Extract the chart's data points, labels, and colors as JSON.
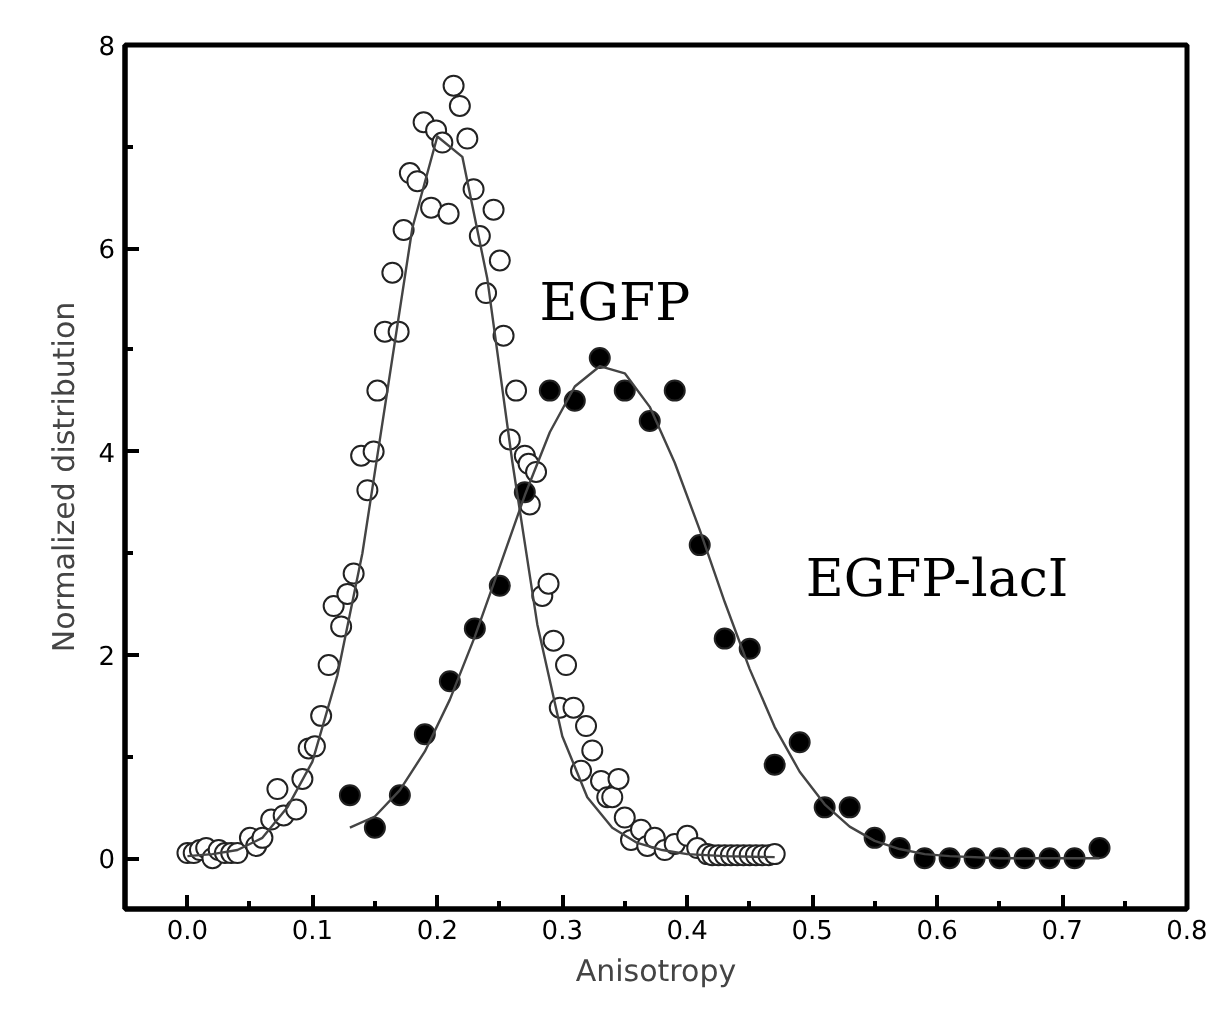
{
  "chart_data": {
    "type": "scatter",
    "xlabel": "Anisotropy",
    "ylabel": "Normalized distribution",
    "xlim": [
      -0.05,
      0.8
    ],
    "ylim": [
      -0.5,
      8
    ],
    "xticks": [
      {
        "value": 0,
        "label": "0.0"
      },
      {
        "value": 0.1,
        "label": "0.1"
      },
      {
        "value": 0.2,
        "label": "0.2"
      },
      {
        "value": 0.3,
        "label": "0.3"
      },
      {
        "value": 0.4,
        "label": "0.4"
      },
      {
        "value": 0.5,
        "label": "0.5"
      },
      {
        "value": 0.6,
        "label": "0.6"
      },
      {
        "value": 0.7,
        "label": "0.7"
      },
      {
        "value": 0.8,
        "label": "0.8"
      }
    ],
    "yticks": [
      0,
      2,
      4,
      6,
      8
    ],
    "grid": false,
    "legend": false,
    "marker": "circle",
    "series": [
      {
        "name": "EGFP",
        "color": "#ffffff",
        "x": [
          0,
          0.005,
          0.01,
          0.015,
          0.02,
          0.025,
          0.03,
          0.035,
          0.04,
          0.05,
          0.055,
          0.06,
          0.067,
          0.072,
          0.077,
          0.087,
          0.092,
          0.097,
          0.102,
          0.107,
          0.113,
          0.117,
          0.123,
          0.128,
          0.133,
          0.139,
          0.144,
          0.149,
          0.152,
          0.158,
          0.164,
          0.169,
          0.173,
          0.178,
          0.184,
          0.189,
          0.195,
          0.199,
          0.204,
          0.209,
          0.213,
          0.218,
          0.224,
          0.229,
          0.234,
          0.239,
          0.245,
          0.25,
          0.253,
          0.258,
          0.263,
          0.27,
          0.273,
          0.274,
          0.279,
          0.284,
          0.289,
          0.293,
          0.298,
          0.303,
          0.309,
          0.315,
          0.319,
          0.324,
          0.331,
          0.336,
          0.34,
          0.345,
          0.35,
          0.355,
          0.363,
          0.368,
          0.374,
          0.382,
          0.39,
          0.4,
          0.408,
          0.416,
          0.42,
          0.425,
          0.43,
          0.435,
          0.44,
          0.445,
          0.45,
          0.455,
          0.46,
          0.465,
          0.47
        ],
        "values": [
          0.05,
          0.05,
          0.08,
          0.1,
          0.0,
          0.08,
          0.05,
          0.05,
          0.05,
          0.2,
          0.12,
          0.2,
          0.38,
          0.68,
          0.42,
          0.48,
          0.78,
          1.08,
          1.1,
          1.4,
          1.9,
          2.48,
          2.28,
          2.6,
          2.8,
          3.96,
          3.62,
          4.0,
          4.6,
          5.18,
          5.76,
          5.18,
          6.18,
          6.74,
          6.66,
          7.24,
          6.4,
          7.16,
          7.04,
          6.34,
          7.6,
          7.4,
          7.08,
          6.58,
          6.12,
          5.56,
          6.38,
          5.88,
          5.14,
          4.12,
          4.6,
          3.96,
          3.88,
          3.48,
          3.8,
          2.58,
          2.7,
          2.14,
          1.48,
          1.9,
          1.48,
          0.86,
          1.3,
          1.06,
          0.76,
          0.6,
          0.6,
          0.78,
          0.4,
          0.18,
          0.28,
          0.12,
          0.2,
          0.08,
          0.14,
          0.22,
          0.1,
          0.04,
          0.03,
          0.03,
          0.03,
          0.03,
          0.03,
          0.03,
          0.03,
          0.03,
          0.03,
          0.03,
          0.04
        ]
      },
      {
        "name": "EGFP-lacI",
        "color": "#000000",
        "x": [
          0.13,
          0.15,
          0.17,
          0.19,
          0.21,
          0.23,
          0.25,
          0.27,
          0.29,
          0.31,
          0.33,
          0.35,
          0.37,
          0.39,
          0.41,
          0.43,
          0.45,
          0.47,
          0.49,
          0.51,
          0.53,
          0.55,
          0.57,
          0.59,
          0.61,
          0.63,
          0.65,
          0.67,
          0.69,
          0.71,
          0.73
        ],
        "values": [
          0.62,
          0.3,
          0.62,
          1.22,
          1.74,
          2.26,
          2.68,
          3.6,
          4.6,
          4.5,
          4.92,
          4.6,
          4.3,
          4.6,
          3.08,
          2.16,
          2.06,
          0.92,
          1.14,
          0.5,
          0.5,
          0.2,
          0.1,
          0,
          0,
          0,
          0,
          0,
          0,
          0,
          0.1
        ]
      },
      {
        "type": "line",
        "color": "#444444",
        "marker": "none",
        "x": [
          0,
          0.02,
          0.04,
          0.06,
          0.08,
          0.1,
          0.12,
          0.14,
          0.16,
          0.18,
          0.2,
          0.22,
          0.24,
          0.26,
          0.28,
          0.3,
          0.32,
          0.34,
          0.36,
          0.38,
          0.4,
          0.43,
          0.47
        ],
        "values": [
          0.02,
          0.04,
          0.08,
          0.2,
          0.5,
          0.95,
          1.8,
          3.0,
          4.6,
          6.2,
          7.1,
          6.9,
          5.7,
          3.9,
          2.3,
          1.2,
          0.6,
          0.3,
          0.15,
          0.08,
          0.04,
          0.02,
          0.01
        ]
      },
      {
        "type": "line",
        "color": "#444444",
        "marker": "none",
        "x": [
          0.13,
          0.15,
          0.17,
          0.19,
          0.21,
          0.23,
          0.25,
          0.27,
          0.29,
          0.31,
          0.33,
          0.35,
          0.37,
          0.39,
          0.41,
          0.43,
          0.45,
          0.47,
          0.49,
          0.51,
          0.53,
          0.55,
          0.57,
          0.59,
          0.61,
          0.65,
          0.73
        ],
        "values": [
          0.3,
          0.41,
          0.67,
          1.05,
          1.56,
          2.18,
          2.87,
          3.57,
          4.19,
          4.64,
          4.84,
          4.77,
          4.44,
          3.89,
          3.23,
          2.52,
          1.86,
          1.29,
          0.85,
          0.53,
          0.31,
          0.17,
          0.09,
          0.04,
          0.02,
          0,
          0
        ]
      }
    ]
  }
}
